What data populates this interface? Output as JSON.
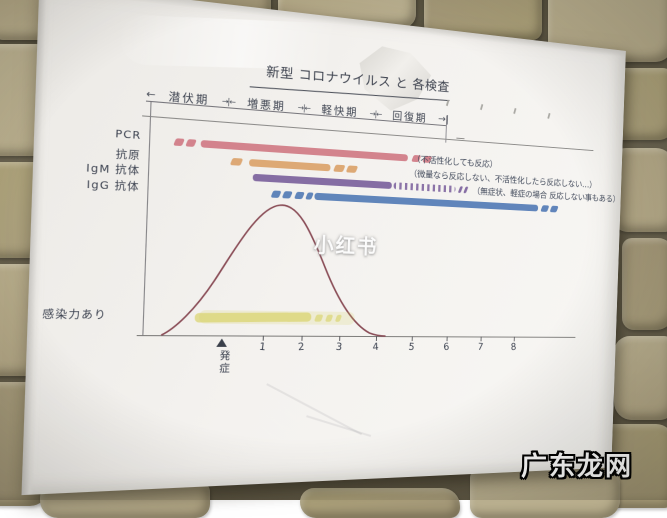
{
  "photo": {
    "watermark_center": "小红书",
    "watermark_bottom_right": "广东龙网"
  },
  "chart": {
    "title": "新型 コロナウイルス と 各検査",
    "timeline": {
      "start_arrow": "←",
      "separator": "→|←",
      "end_arrow": "→|",
      "phases": [
        "潜伏期",
        "増悪期",
        "軽快期",
        "回復期"
      ]
    },
    "rows": [
      {
        "label": "PCR",
        "color": "#cc6b78",
        "note": "（不活性化しても反応）"
      },
      {
        "label": "抗原",
        "color": "#d8995a",
        "note": "（微量なら反応しない、不活性化したら反応しない…）"
      },
      {
        "label": "IgM 抗体",
        "color": "#6d4f93",
        "note": "（無症状、軽症の場合 反応しない事もある）"
      },
      {
        "label": "IgG 抗体",
        "color": "#3f6dae",
        "note": ""
      }
    ],
    "axis": {
      "onset_label": "発症",
      "ticks": [
        "1",
        "2",
        "3",
        "4",
        "5",
        "6",
        "7",
        "8"
      ]
    },
    "infectious_label": "感染力あり"
  },
  "chart_data": {
    "type": "area",
    "title": "新型 コロナウイルス と 各検査",
    "xlabel": "",
    "ylabel": "",
    "x_ticks": [
      "発症",
      "1",
      "2",
      "3",
      "4",
      "5",
      "6",
      "7",
      "8"
    ],
    "phases": [
      {
        "name": "潜伏期",
        "x_range": [
          -2.0,
          0.7
        ]
      },
      {
        "name": "増悪期",
        "x_range": [
          0.7,
          2.3
        ]
      },
      {
        "name": "軽快期",
        "x_range": [
          2.3,
          3.6
        ]
      },
      {
        "name": "回復期",
        "x_range": [
          3.6,
          4.9
        ]
      }
    ],
    "symptom_curve": {
      "peak_x": 1.4,
      "base_range": [
        -1.5,
        4.1
      ],
      "peak_height_relative": 1.0,
      "color": "#8a4d57"
    },
    "infectious_period": {
      "label": "感染力あり",
      "solid_range": [
        -0.7,
        2.2
      ],
      "dashed_until": 3.0,
      "color": "#d6d05e"
    },
    "test_windows": [
      {
        "name": "PCR",
        "solid_range": [
          -0.7,
          4.7
        ],
        "dashed_before": -1.35,
        "dashed_after": 5.4,
        "color": "#cc6b78",
        "note": "（不活性化しても反応）"
      },
      {
        "name": "抗原",
        "solid_range": [
          0.5,
          2.6
        ],
        "dashed_before": 0.05,
        "dashed_after": 3.3,
        "color": "#d8995a",
        "note": "（微量なら反応しない、不活性化したら反応しない…）"
      },
      {
        "name": "IgM 抗体",
        "solid_range": [
          0.6,
          4.3
        ],
        "hatched_after": 6.1,
        "color": "#6d4f93",
        "note": "（無症状、軽症の場合 反応しない事もある）"
      },
      {
        "name": "IgG 抗体",
        "solid_range": [
          2.2,
          8.6
        ],
        "dashed_before": 1.1,
        "dashed_after": 9.2,
        "color": "#3f6dae",
        "note": ""
      }
    ]
  }
}
